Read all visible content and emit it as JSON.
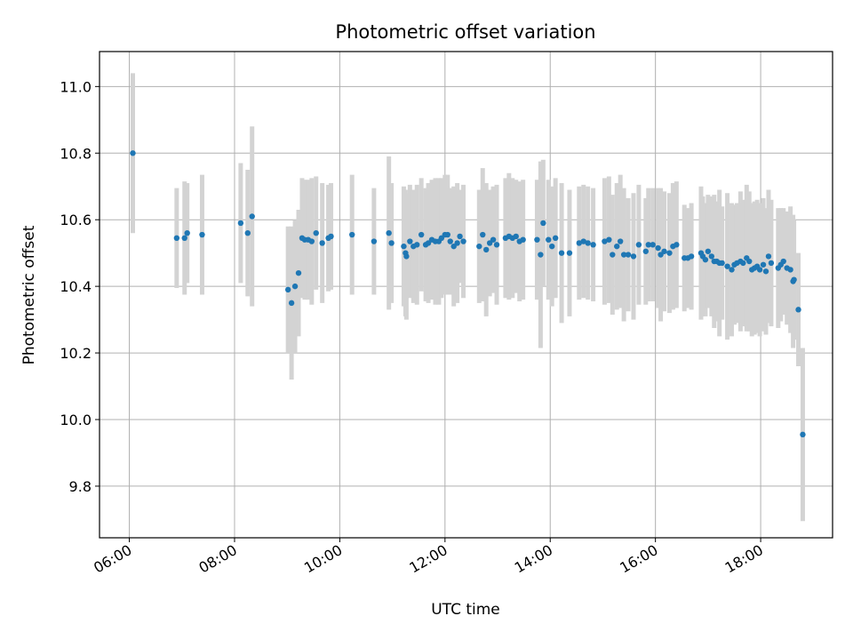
{
  "chart_data": {
    "type": "scatter",
    "title": "Photometric offset variation",
    "xlabel": "UTC time",
    "ylabel": "Photometric offset",
    "x_format": "HH:MM",
    "x_ticks": [
      "06:00",
      "08:00",
      "10:00",
      "12:00",
      "14:00",
      "16:00",
      "18:00"
    ],
    "y_ticks": [
      "9.8",
      "10.0",
      "10.2",
      "10.4",
      "10.6",
      "10.8",
      "11.0"
    ],
    "xlim": [
      "05:26",
      "19:22"
    ],
    "ylim": [
      9.645,
      11.105
    ],
    "grid": true,
    "legend": "none",
    "colors": {
      "points": "#1f77b4",
      "errorbars": "#d3d3d3",
      "grid": "#b0b0b0"
    },
    "series": [
      {
        "x": [
          "06:04",
          "06:54",
          "07:03",
          "07:06",
          "07:23",
          "08:07",
          "08:15",
          "08:20",
          "09:01",
          "09:05",
          "09:09",
          "09:13",
          "09:17",
          "09:20",
          "09:24",
          "09:28",
          "09:33",
          "09:40",
          "09:47",
          "09:50",
          "10:14",
          "10:39",
          "10:56",
          "10:59",
          "11:13",
          "11:15",
          "11:16",
          "11:20",
          "11:24",
          "11:28",
          "11:33",
          "11:38",
          "11:41",
          "11:45",
          "11:49",
          "11:53",
          "11:56",
          "12:00",
          "12:03",
          "12:06",
          "12:10",
          "12:14",
          "12:17",
          "12:21",
          "12:39",
          "12:43",
          "12:47",
          "12:51",
          "12:55",
          "12:59",
          "13:09",
          "13:13",
          "13:17",
          "13:21",
          "13:25",
          "13:29",
          "13:45",
          "13:49",
          "13:52",
          "13:58",
          "14:02",
          "14:06",
          "14:13",
          "14:22",
          "14:33",
          "14:38",
          "14:43",
          "14:49",
          "15:02",
          "15:07",
          "15:11",
          "15:16",
          "15:20",
          "15:24",
          "15:29",
          "15:35",
          "15:41",
          "15:49",
          "15:52",
          "15:57",
          "16:03",
          "16:06",
          "16:10",
          "16:16",
          "16:20",
          "16:24",
          "16:33",
          "16:37",
          "16:41",
          "16:52",
          "16:54",
          "16:57",
          "17:00",
          "17:04",
          "17:07",
          "17:10",
          "17:13",
          "17:16",
          "17:22",
          "17:27",
          "17:30",
          "17:33",
          "17:37",
          "17:40",
          "17:44",
          "17:47",
          "17:50",
          "17:53",
          "17:56",
          "17:59",
          "18:03",
          "18:06",
          "18:09",
          "18:12",
          "18:20",
          "18:23",
          "18:26",
          "18:30",
          "18:34",
          "18:37",
          "18:38",
          "18:43",
          "18:48"
        ],
        "y": [
          10.8,
          10.545,
          10.545,
          10.56,
          10.555,
          10.59,
          10.56,
          10.61,
          10.39,
          10.35,
          10.4,
          10.44,
          10.545,
          10.54,
          10.54,
          10.535,
          10.56,
          10.53,
          10.545,
          10.55,
          10.555,
          10.535,
          10.56,
          10.53,
          10.52,
          10.5,
          10.49,
          10.535,
          10.52,
          10.525,
          10.555,
          10.525,
          10.53,
          10.54,
          10.535,
          10.535,
          10.545,
          10.555,
          10.555,
          10.535,
          10.52,
          10.53,
          10.55,
          10.535,
          10.52,
          10.555,
          10.51,
          10.53,
          10.54,
          10.525,
          10.545,
          10.55,
          10.545,
          10.55,
          10.535,
          10.54,
          10.54,
          10.495,
          10.59,
          10.54,
          10.52,
          10.545,
          10.5,
          10.5,
          10.53,
          10.535,
          10.53,
          10.525,
          10.535,
          10.54,
          10.495,
          10.52,
          10.535,
          10.495,
          10.495,
          10.49,
          10.525,
          10.505,
          10.525,
          10.525,
          10.515,
          10.495,
          10.505,
          10.5,
          10.52,
          10.525,
          10.485,
          10.485,
          10.49,
          10.5,
          10.49,
          10.48,
          10.505,
          10.49,
          10.475,
          10.475,
          10.47,
          10.47,
          10.46,
          10.45,
          10.465,
          10.47,
          10.475,
          10.47,
          10.485,
          10.475,
          10.45,
          10.455,
          10.46,
          10.45,
          10.465,
          10.445,
          10.49,
          10.47,
          10.455,
          10.465,
          10.475,
          10.455,
          10.45,
          10.415,
          10.42,
          10.33,
          9.955
        ],
        "err": [
          0.24,
          0.15,
          0.17,
          0.15,
          0.18,
          0.18,
          0.19,
          0.27,
          0.19,
          0.23,
          0.2,
          0.19,
          0.18,
          0.18,
          0.18,
          0.19,
          0.17,
          0.18,
          0.16,
          0.16,
          0.18,
          0.16,
          0.23,
          0.18,
          0.18,
          0.19,
          0.19,
          0.17,
          0.17,
          0.18,
          0.17,
          0.17,
          0.18,
          0.18,
          0.19,
          0.19,
          0.18,
          0.18,
          0.18,
          0.16,
          0.18,
          0.18,
          0.14,
          0.17,
          0.17,
          0.2,
          0.2,
          0.16,
          0.16,
          0.18,
          0.18,
          0.19,
          0.18,
          0.17,
          0.18,
          0.18,
          0.18,
          0.28,
          0.19,
          0.18,
          0.18,
          0.18,
          0.21,
          0.19,
          0.17,
          0.17,
          0.17,
          0.17,
          0.19,
          0.19,
          0.18,
          0.19,
          0.2,
          0.2,
          0.17,
          0.19,
          0.18,
          0.16,
          0.17,
          0.17,
          0.18,
          0.2,
          0.18,
          0.18,
          0.19,
          0.19,
          0.16,
          0.15,
          0.16,
          0.2,
          0.18,
          0.17,
          0.17,
          0.18,
          0.2,
          0.18,
          0.22,
          0.17,
          0.22,
          0.2,
          0.18,
          0.18,
          0.21,
          0.19,
          0.22,
          0.21,
          0.2,
          0.2,
          0.2,
          0.2,
          0.2,
          0.19,
          0.2,
          0.19,
          0.18,
          0.17,
          0.16,
          0.17,
          0.19,
          0.2,
          0.18,
          0.17,
          0.26
        ]
      }
    ]
  }
}
